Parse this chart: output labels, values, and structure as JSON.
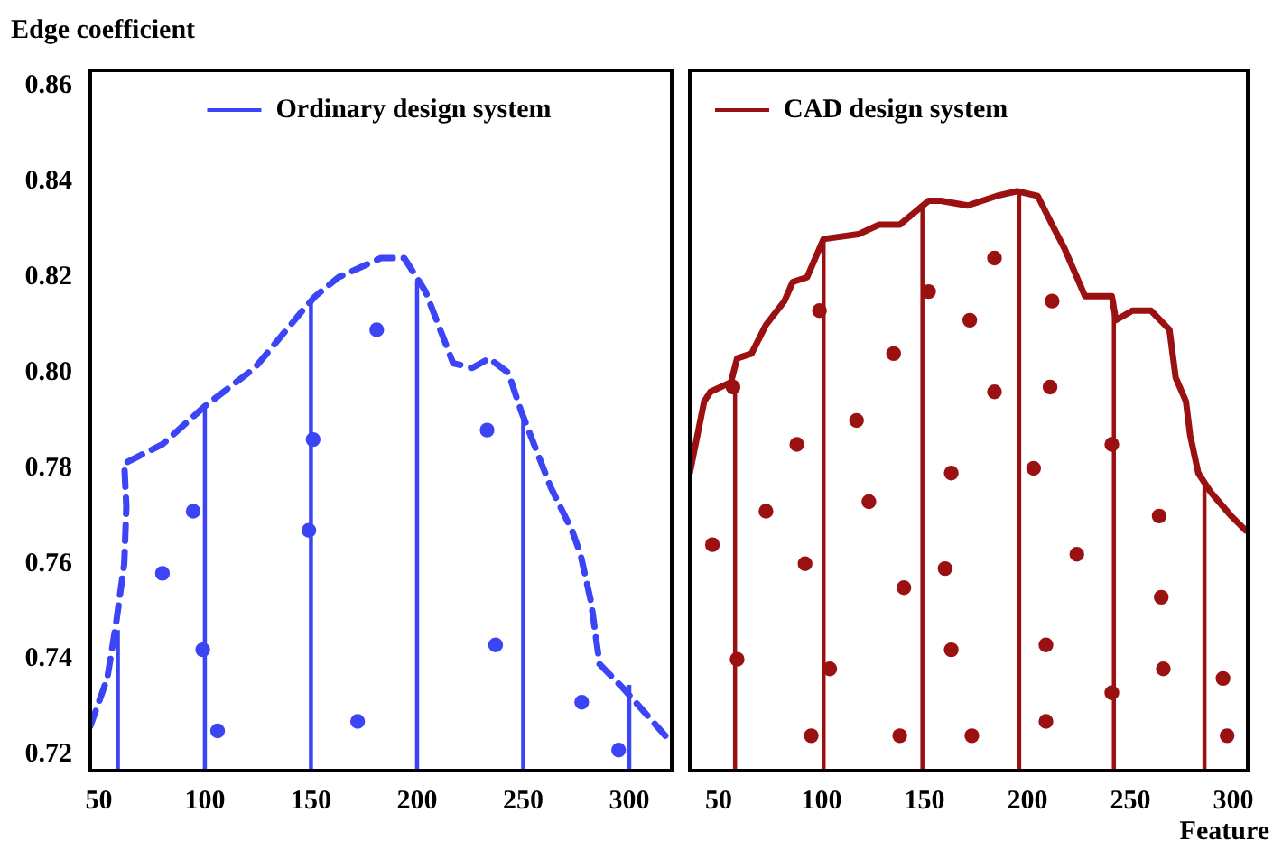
{
  "chart_data": [
    {
      "type": "line",
      "ylabel": "Edge coefficient",
      "xlim": [
        46,
        320
      ],
      "xticks": [
        50,
        100,
        150,
        200,
        250,
        300
      ],
      "ylim": [
        0.7167,
        0.8633
      ],
      "yticks": [
        0.72,
        0.74,
        0.76,
        0.78,
        {
          "value": 0.8,
          "label": "0.80"
        },
        0.82,
        0.84,
        0.86
      ],
      "grid": false,
      "legend": "top",
      "tick_labels": "xy",
      "series": [
        {
          "color": "#3b45f5",
          "line_style": "dashed",
          "marker": "none",
          "x": [
            46,
            54,
            58,
            62,
            63,
            62,
            80,
            100,
            123.5,
            146,
            152,
            163,
            183,
            194,
            204,
            217,
            226,
            234,
            243,
            249,
            256,
            263,
            273,
            277,
            282,
            286,
            297,
            317
          ],
          "values": [
            0.726,
            0.736,
            0.747,
            0.76,
            0.772,
            0.781,
            0.785,
            0.793,
            0.801,
            0.813,
            0.816,
            0.82,
            0.824,
            0.824,
            0.817,
            0.802,
            0.801,
            0.803,
            0.8,
            0.792,
            0.784,
            0.776,
            0.767,
            0.762,
            0.752,
            0.739,
            0.734,
            0.724
          ]
        },
        {
          "type": "bar",
          "name": "Ordinary design system",
          "color": "#3b45f5",
          "x": [
            59,
            100,
            150,
            200,
            250,
            300
          ],
          "values": [
            0.746,
            0.793,
            0.815,
            0.819,
            0.792,
            0.7345
          ]
        },
        {
          "type": "scatter",
          "color": "#3b45f5",
          "marker": "circle",
          "x": [
            181,
            233,
            151,
            94.5,
            80,
            149,
            99,
            106,
            172,
            237,
            277.6,
            295
          ],
          "values": [
            0.809,
            0.788,
            0.786,
            0.771,
            0.758,
            0.767,
            0.742,
            0.725,
            0.727,
            0.743,
            0.731,
            0.721
          ]
        }
      ]
    },
    {
      "type": "line",
      "xlabel": "Feature",
      "xlim": [
        36,
        307
      ],
      "xticks": [
        50,
        100,
        150,
        200,
        250,
        300
      ],
      "ylim": [
        0.7167,
        0.8633
      ],
      "grid": false,
      "legend": "top left",
      "tick_labels": "x",
      "series": [
        {
          "color": "#9b1111",
          "line_style": "solid",
          "marker": "none",
          "x": [
            36,
            43,
            46,
            56,
            59,
            66,
            73,
            82,
            86,
            93,
            101,
            118,
            128,
            138,
            152,
            158,
            171,
            185,
            195,
            205,
            212,
            218,
            228,
            241,
            243,
            251,
            260,
            269,
            272,
            277,
            279,
            283,
            289,
            299,
            306
          ],
          "values": [
            0.779,
            0.794,
            0.796,
            0.798,
            0.803,
            0.804,
            0.81,
            0.815,
            0.819,
            0.82,
            0.828,
            0.829,
            0.831,
            0.831,
            0.836,
            0.836,
            0.835,
            0.837,
            0.838,
            0.837,
            0.831,
            0.826,
            0.816,
            0.816,
            0.811,
            0.813,
            0.813,
            0.809,
            0.799,
            0.794,
            0.787,
            0.779,
            0.775,
            0.77,
            0.767
          ]
        },
        {
          "type": "bar",
          "name": "CAD design system",
          "color": "#9b1111",
          "x": [
            58,
            101,
            149,
            196,
            242,
            286
          ],
          "values": [
            0.797,
            0.828,
            0.835,
            0.838,
            0.815,
            0.777
          ]
        },
        {
          "type": "scatter",
          "color": "#9b1111",
          "marker": "circle",
          "x": [
            57,
            99,
            184,
            152,
            172,
            135,
            212,
            184,
            211,
            117,
            88,
            241,
            163,
            203,
            73,
            123,
            264,
            47,
            92,
            224,
            160,
            140,
            265,
            59,
            104,
            163,
            209,
            266,
            295,
            241,
            95,
            138,
            173,
            209,
            297
          ],
          "values": [
            0.797,
            0.813,
            0.824,
            0.817,
            0.811,
            0.804,
            0.815,
            0.796,
            0.797,
            0.79,
            0.785,
            0.785,
            0.779,
            0.78,
            0.771,
            0.773,
            0.77,
            0.764,
            0.76,
            0.762,
            0.759,
            0.755,
            0.753,
            0.74,
            0.738,
            0.742,
            0.743,
            0.738,
            0.736,
            0.733,
            0.724,
            0.724,
            0.724,
            0.727,
            0.724
          ]
        }
      ]
    }
  ]
}
